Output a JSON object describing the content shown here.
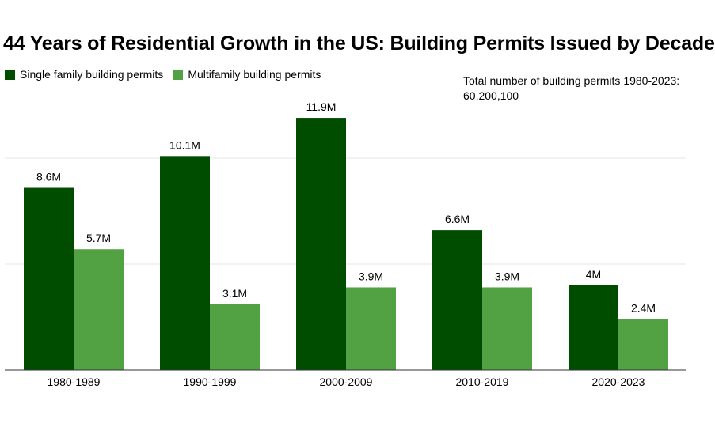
{
  "chart_data": {
    "type": "bar",
    "title": "44 Years of Residential Growth in the US: Building Permits Issued by Decade",
    "categories": [
      "1980-1989",
      "1990-1999",
      "2000-2009",
      "2010-2019",
      "2020-2023"
    ],
    "series": [
      {
        "name": "Single family building permits",
        "color": "#004d00",
        "values": [
          8.6,
          10.1,
          11.9,
          6.6,
          4.0
        ],
        "labels": [
          "8.6M",
          "10.1M",
          "11.9M",
          "6.6M",
          "4M"
        ]
      },
      {
        "name": "Multifamily building permits",
        "color": "#52a142",
        "values": [
          5.7,
          3.1,
          3.9,
          3.9,
          2.4
        ],
        "labels": [
          "5.7M",
          "3.1M",
          "3.9M",
          "3.9M",
          "2.4M"
        ]
      }
    ],
    "annotation": "Total number of building permits 1980-2023: 60,200,100",
    "ylim": [
      0,
      15
    ],
    "grid": true,
    "legend": "top-left"
  }
}
